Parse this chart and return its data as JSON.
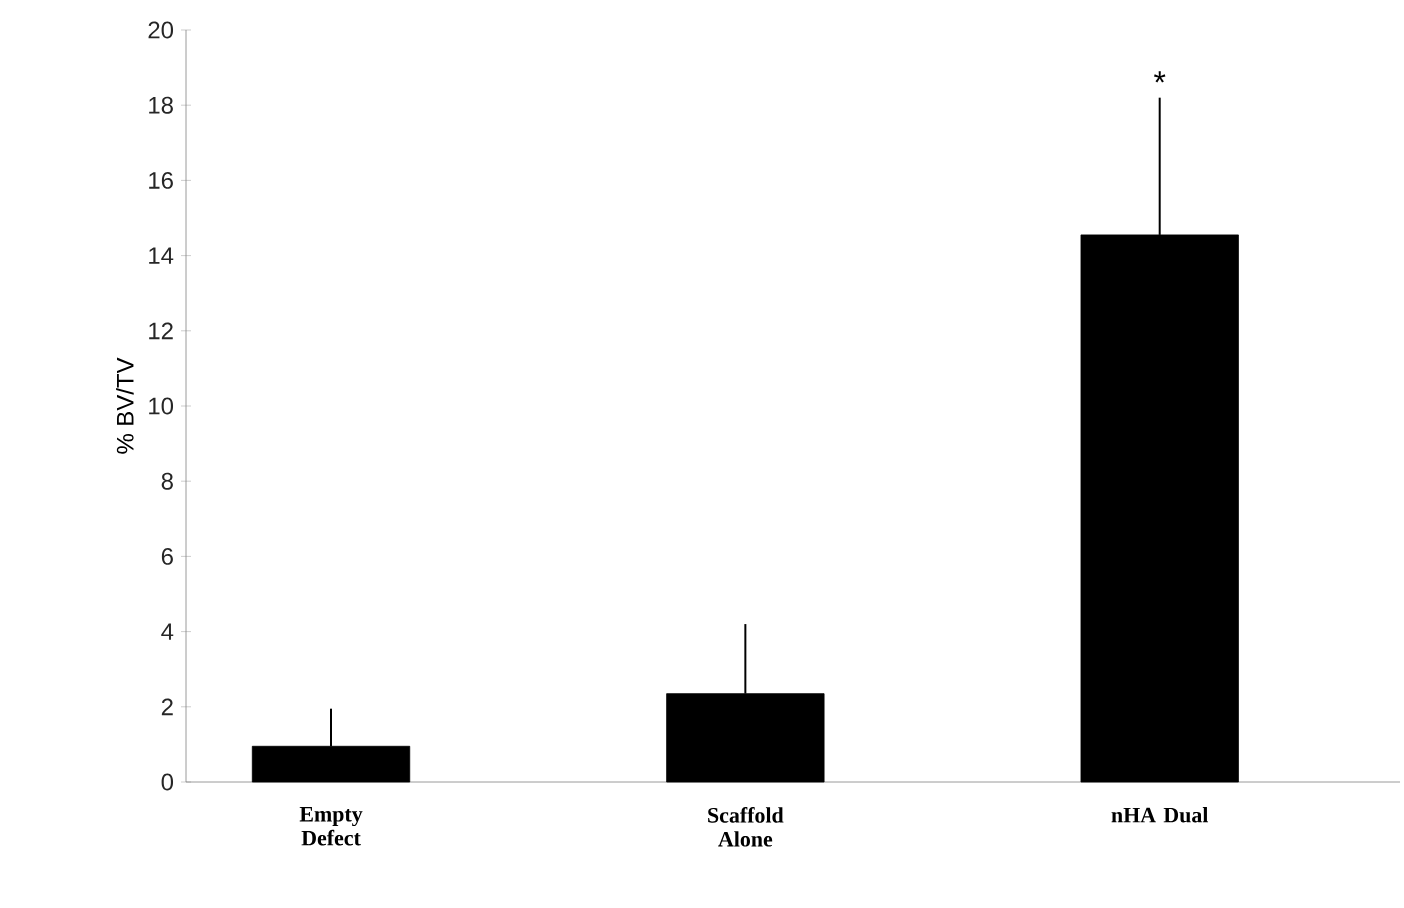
{
  "chart_data": {
    "type": "bar",
    "ylabel": "% BV/TV",
    "categories": [
      "Empty Defect",
      "Scaffold Alone",
      "nHA Dual"
    ],
    "values": [
      0.95,
      2.35,
      14.55
    ],
    "errors": [
      [
        0.95,
        1.95
      ],
      [
        2.35,
        4.2
      ],
      [
        14.55,
        18.2
      ]
    ],
    "color": "#000000",
    "ylim": [
      0,
      20
    ],
    "yticks": [
      0,
      2,
      4,
      6,
      8,
      10,
      12,
      14,
      16,
      18,
      20
    ],
    "annotations": [
      "*"
    ]
  }
}
